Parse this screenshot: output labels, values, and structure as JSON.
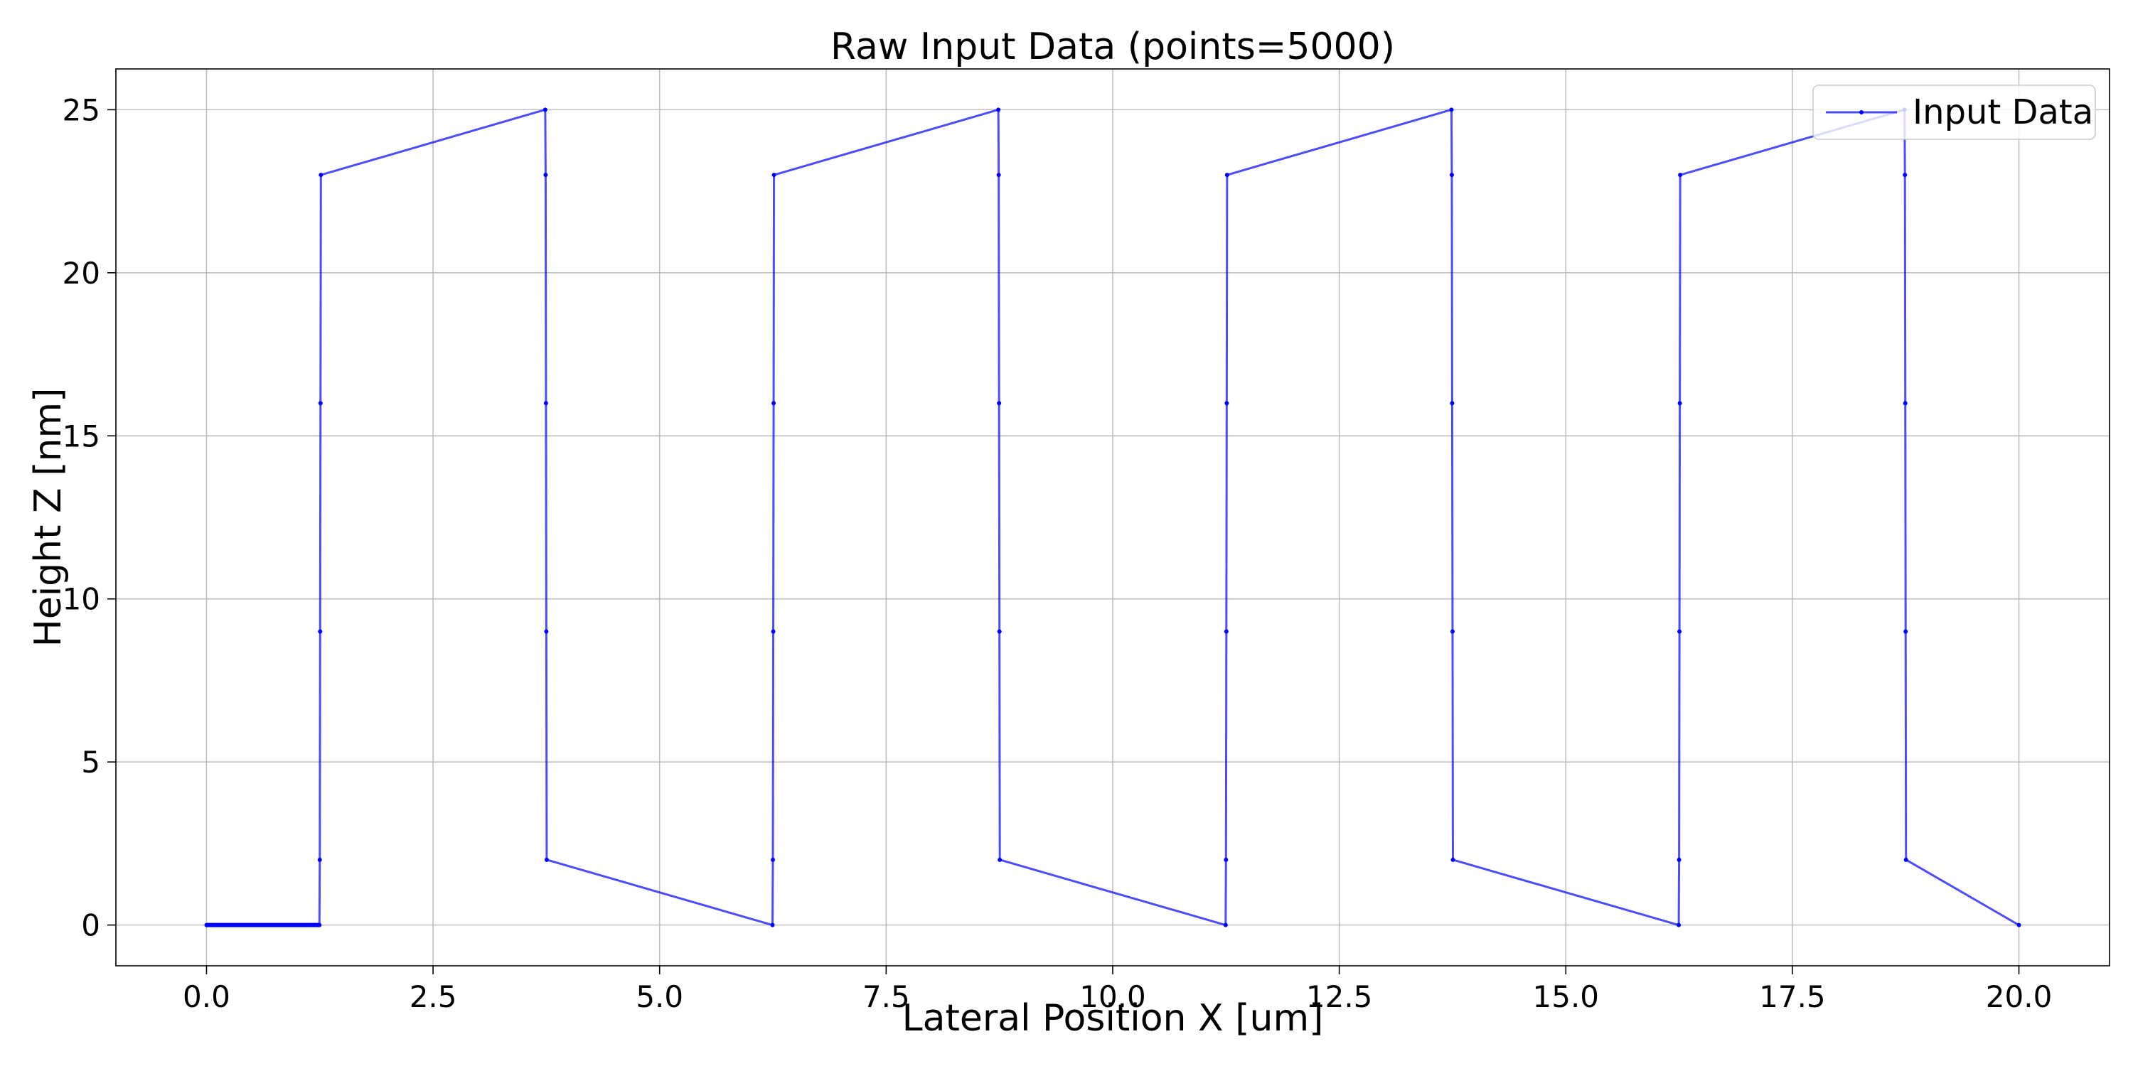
{
  "chart_data": {
    "type": "line",
    "title": "Raw Input Data (points=5000)",
    "xlabel": "Lateral Position X [um]",
    "ylabel": "Height Z [nm]",
    "xlim": [
      -1.0,
      21.0
    ],
    "ylim": [
      -1.25,
      26.25
    ],
    "grid": true,
    "legend_position": "top-right",
    "xticks": [
      0.0,
      2.5,
      5.0,
      7.5,
      10.0,
      12.5,
      15.0,
      17.5,
      20.0
    ],
    "xtick_labels": [
      "0.0",
      "2.5",
      "5.0",
      "7.5",
      "10.0",
      "12.5",
      "15.0",
      "17.5",
      "20.0"
    ],
    "yticks": [
      0,
      5,
      10,
      15,
      20,
      25
    ],
    "ytick_labels": [
      "0",
      "5",
      "10",
      "15",
      "20",
      "25"
    ],
    "series": [
      {
        "name": "Input Data",
        "color": "#0000ff",
        "marker": "small dot",
        "x": [
          0.0,
          1.246,
          1.25,
          1.254,
          1.258,
          1.262,
          3.738,
          3.742,
          3.746,
          3.75,
          3.754,
          6.246,
          6.25,
          6.254,
          6.258,
          6.262,
          8.738,
          8.742,
          8.746,
          8.75,
          8.754,
          11.246,
          11.25,
          11.254,
          11.258,
          11.262,
          13.738,
          13.742,
          13.746,
          13.75,
          13.754,
          16.246,
          16.25,
          16.254,
          16.258,
          16.262,
          18.738,
          18.742,
          18.746,
          18.75,
          18.754,
          20.0
        ],
        "y": [
          0,
          0,
          2,
          9,
          16,
          23,
          25,
          23,
          16,
          9,
          2,
          0,
          2,
          9,
          16,
          23,
          25,
          23,
          16,
          9,
          2,
          0,
          2,
          9,
          16,
          23,
          25,
          23,
          16,
          9,
          2,
          0,
          2,
          9,
          16,
          23,
          25,
          23,
          16,
          9,
          2,
          0
        ]
      }
    ]
  }
}
